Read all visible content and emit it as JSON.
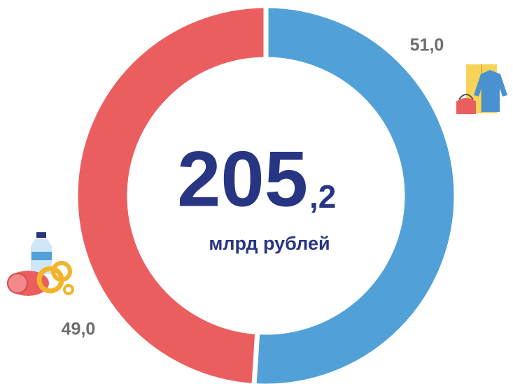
{
  "chart_data": {
    "type": "donut",
    "values": [
      51.0,
      49.0
    ],
    "value_labels": [
      "51,0",
      "49,0"
    ],
    "colors": [
      "#52a0d8",
      "#eb5e5f"
    ],
    "center_text": {
      "main": "205",
      "fraction": ",2",
      "unit": "млрд рублей"
    }
  }
}
